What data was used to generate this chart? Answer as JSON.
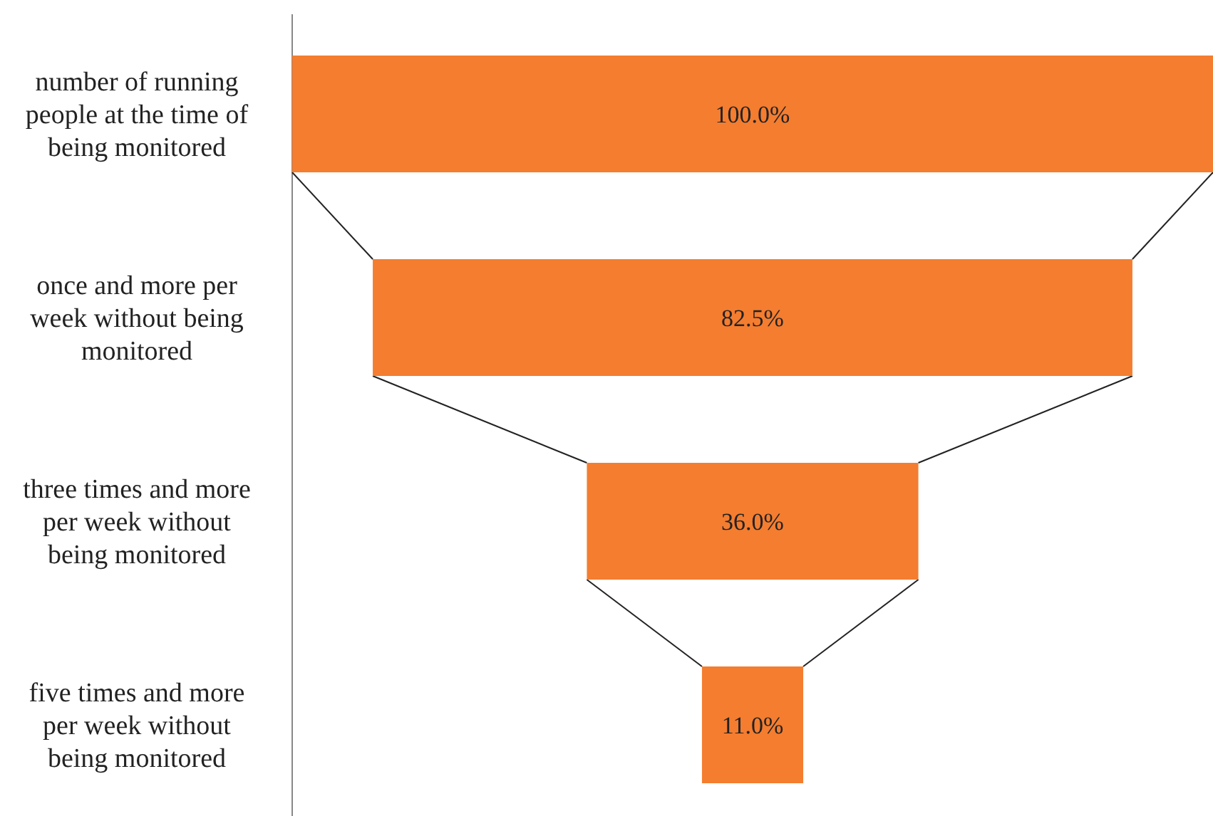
{
  "chart_data": {
    "type": "other",
    "categories": [
      "number of running people at the time of being monitored",
      "once and more per week without being monitored",
      "three times and more per week without being monitored",
      "five times and more per week without being monitored"
    ],
    "values": [
      100.0,
      82.5,
      36.0,
      11.0
    ],
    "value_labels": [
      "100.0%",
      "82.5%",
      "36.0%",
      "11.0%"
    ],
    "color": "#f47d30"
  }
}
